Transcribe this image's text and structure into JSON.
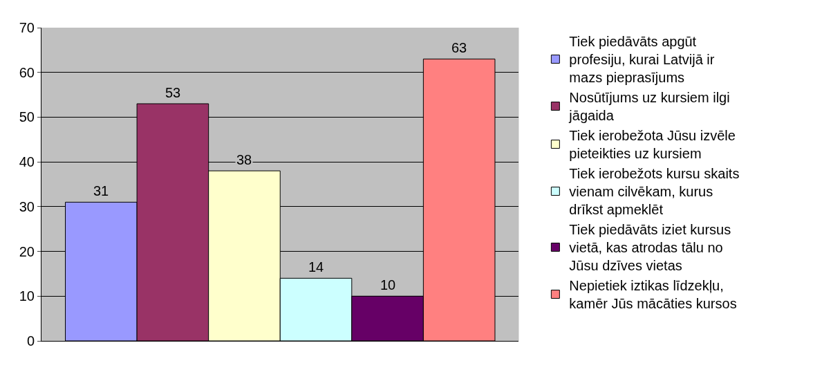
{
  "chart_data": {
    "type": "bar",
    "categories": [
      null
    ],
    "series": [
      {
        "name": "Tiek piedāvāts apgūt profesiju, kurai Latvijā ir mazs pieprasījums",
        "color": "#9999ff",
        "values": [
          31
        ]
      },
      {
        "name": "Nosūtījums uz kursiem ilgi jāgaida",
        "color": "#993366",
        "values": [
          53
        ]
      },
      {
        "name": "Tiek ierobežota Jūsu izvēle pieteikties uz kursiem",
        "color": "#ffffcc",
        "values": [
          38
        ]
      },
      {
        "name": "Tiek ierobežots kursu skaits vienam cilvēkam, kurus drīkst apmeklēt",
        "color": "#ccffff",
        "values": [
          14
        ]
      },
      {
        "name": "Tiek piedāvāts iziet kursus vietā, kas atrodas tālu no Jūsu dzīves vietas",
        "color": "#660066",
        "values": [
          10
        ]
      },
      {
        "name": "Nepietiek iztikas līdzekļu, kamēr Jūs mācāties kursos",
        "color": "#ff8080",
        "values": [
          63
        ]
      }
    ],
    "ylim": [
      0,
      70
    ],
    "yticks": [
      0,
      10,
      20,
      30,
      40,
      50,
      60,
      70
    ],
    "grid": "y",
    "legend": "right",
    "data_labels": true,
    "tick_labels": "y"
  }
}
